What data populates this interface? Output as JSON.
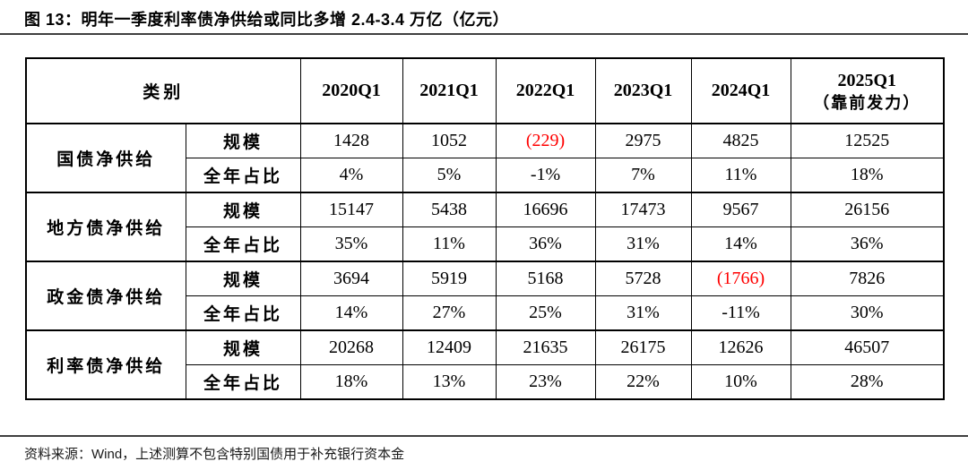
{
  "figure": {
    "title": "图 13：明年一季度利率债净供给或同比多增 2.4-3.4 万亿（亿元）",
    "source_note": "资料来源：Wind，上述测算不包含特别国债用于补充银行资本金"
  },
  "table": {
    "category_header": "类别",
    "quarter_headers": [
      "2020Q1",
      "2021Q1",
      "2022Q1",
      "2023Q1",
      "2024Q1"
    ],
    "last_quarter_header": {
      "line1": "2025Q1",
      "line2": "（靠前发力）"
    },
    "row_labels": {
      "scale": "规模",
      "share": "全年占比"
    },
    "groups": [
      {
        "name": "国债净供给",
        "scale": [
          "1428",
          "1052",
          "(229)",
          "2975",
          "4825",
          "12525"
        ],
        "share": [
          "4%",
          "5%",
          "-1%",
          "7%",
          "11%",
          "18%"
        ]
      },
      {
        "name": "地方债净供给",
        "scale": [
          "15147",
          "5438",
          "16696",
          "17473",
          "9567",
          "26156"
        ],
        "share": [
          "35%",
          "11%",
          "36%",
          "31%",
          "14%",
          "36%"
        ]
      },
      {
        "name": "政金债净供给",
        "scale": [
          "3694",
          "5919",
          "5168",
          "5728",
          "(1766)",
          "7826"
        ],
        "share": [
          "14%",
          "27%",
          "25%",
          "31%",
          "-11%",
          "30%"
        ]
      },
      {
        "name": "利率债净供给",
        "scale": [
          "20268",
          "12409",
          "21635",
          "26175",
          "12626",
          "46507"
        ],
        "share": [
          "18%",
          "13%",
          "23%",
          "22%",
          "10%",
          "28%"
        ]
      }
    ]
  },
  "colors": {
    "text": "#000000",
    "negative_value": "#ff0000",
    "rule": "#3f3f3f"
  }
}
